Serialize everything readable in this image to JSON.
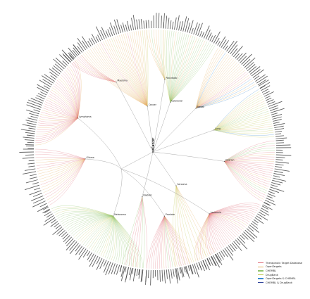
{
  "figure": {
    "root_label": "eCancer",
    "hub_labels": [
      "Cancer",
      "Colorectal",
      "Breast",
      "Lung",
      "Ovarian",
      "Leukemia",
      "Prostate",
      "Melanoma",
      "Glioma",
      "Lymphoma",
      "Myeloma",
      "Pancreatic",
      "Sarcoma",
      "Bladder"
    ]
  },
  "legend": {
    "items": [
      {
        "label": "Therapeutic Target Database",
        "color": "#e0707c"
      },
      {
        "label": "OpenTargets",
        "color": "#e6b060"
      },
      {
        "label": "CHEMBL",
        "color": "#8fc36a"
      },
      {
        "label": "DrugBank",
        "color": "#c6cc5c"
      },
      {
        "label": "OpenTargets & CHEMBL",
        "color": "#3b8ad0"
      },
      {
        "label": "CHEMBL & DrugBank",
        "color": "#31449a"
      }
    ]
  },
  "colors": {
    "ttd": "#e0707c",
    "opentargets": "#e6b060",
    "chembl": "#8fc36a",
    "drugbank": "#c6cc5c",
    "ot_chembl": "#3b8ad0",
    "chembl_drugbank": "#31449a",
    "edge": "#888888"
  }
}
